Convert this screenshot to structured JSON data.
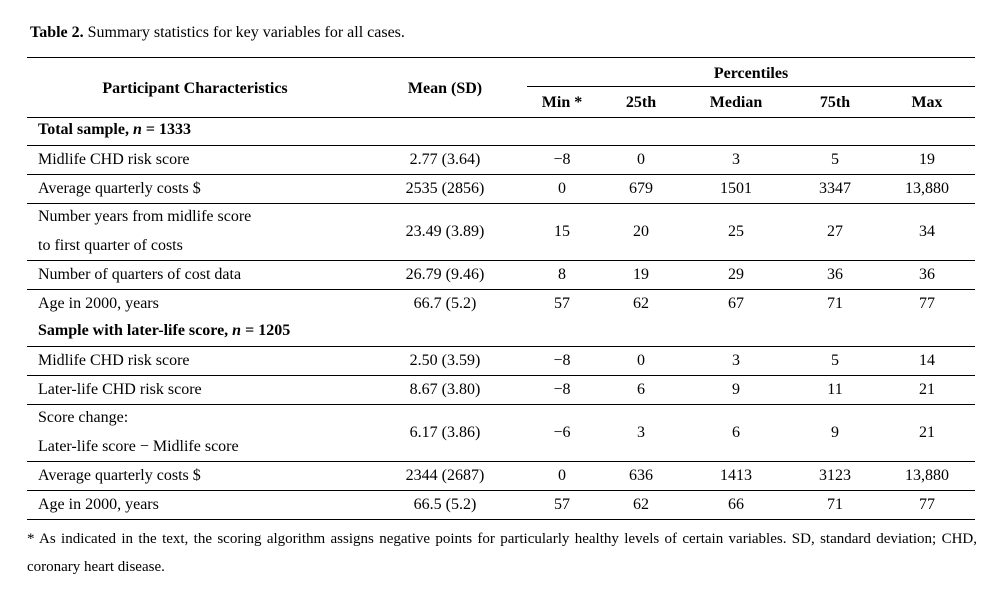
{
  "caption": {
    "label": "Table 2.",
    "text": " Summary statistics for key variables for all cases."
  },
  "table": {
    "header": {
      "characteristics": "Participant Characteristics",
      "mean": "Mean (SD)",
      "group": "Percentiles",
      "percentiles": [
        "Min *",
        "25th",
        "Median",
        "75th",
        "Max"
      ]
    },
    "sections": [
      {
        "title": [
          {
            "text": "Total sample, ",
            "italic": false
          },
          {
            "text": "n",
            "italic": true
          },
          {
            "text": " = 1333",
            "italic": false
          }
        ],
        "rows": [
          {
            "label": [
              "Midlife CHD risk score"
            ],
            "cells": [
              "2.77 (3.64)",
              "−8",
              "0",
              "3",
              "5",
              "19"
            ]
          },
          {
            "label": [
              "Average quarterly costs $"
            ],
            "cells": [
              "2535 (2856)",
              "0",
              "679",
              "1501",
              "3347",
              "13,880"
            ]
          },
          {
            "label": [
              "Number years from midlife score",
              "to first quarter of costs"
            ],
            "cells": [
              "23.49 (3.89)",
              "15",
              "20",
              "25",
              "27",
              "34"
            ]
          },
          {
            "label": [
              "Number of quarters of cost data"
            ],
            "cells": [
              "26.79 (9.46)",
              "8",
              "19",
              "29",
              "36",
              "36"
            ]
          },
          {
            "label": [
              "Age in 2000, years"
            ],
            "cells": [
              "66.7 (5.2)",
              "57",
              "62",
              "67",
              "71",
              "77"
            ]
          }
        ]
      },
      {
        "title": [
          {
            "text": "Sample with later-life score, ",
            "italic": false
          },
          {
            "text": "n",
            "italic": true
          },
          {
            "text": " = 1205",
            "italic": false
          }
        ],
        "rows": [
          {
            "label": [
              "Midlife CHD risk score"
            ],
            "cells": [
              "2.50 (3.59)",
              "−8",
              "0",
              "3",
              "5",
              "14"
            ]
          },
          {
            "label": [
              "Later-life CHD risk score"
            ],
            "cells": [
              "8.67 (3.80)",
              "−8",
              "6",
              "9",
              "11",
              "21"
            ]
          },
          {
            "label": [
              "Score change:",
              "Later-life score − Midlife score"
            ],
            "cells": [
              "6.17 (3.86)",
              "−6",
              "3",
              "6",
              "9",
              "21"
            ]
          },
          {
            "label": [
              "Average quarterly costs $"
            ],
            "cells": [
              "2344 (2687)",
              "0",
              "636",
              "1413",
              "3123",
              "13,880"
            ]
          },
          {
            "label": [
              "Age in 2000, years"
            ],
            "cells": [
              "66.5 (5.2)",
              "57",
              "62",
              "66",
              "71",
              "77"
            ]
          }
        ]
      }
    ]
  },
  "footnote": "* As indicated in the text, the scoring algorithm assigns negative points for particularly healthy levels of certain variables. SD, standard deviation; CHD, coronary heart disease."
}
